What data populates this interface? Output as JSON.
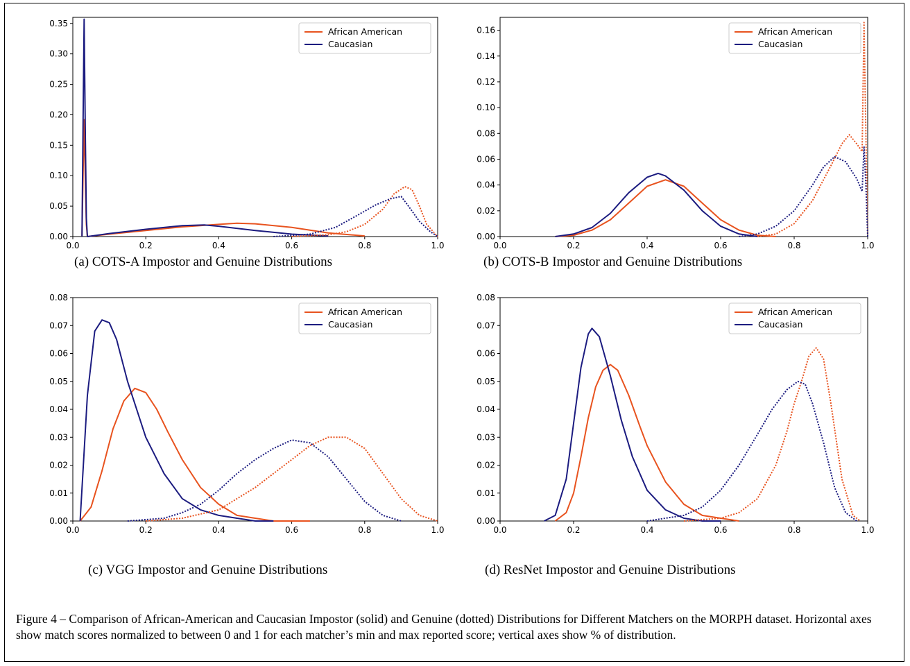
{
  "colors": {
    "african_american": "#e8531f",
    "caucasian": "#1c1c80"
  },
  "legend": [
    "African American",
    "Caucasian"
  ],
  "captions": [
    "(a) COTS-A Impostor and Genuine Distributions",
    "(b) COTS-B Impostor and Genuine Distributions",
    "(c) VGG Impostor and Genuine Distributions",
    "(d) ResNet Impostor and Genuine Distributions"
  ],
  "figure_caption": "Figure 4 – Comparison of African-American and Caucasian Impostor (solid) and Genuine (dotted) Distributions for Different Matchers on the MORPH dataset.  Horizontal axes show match scores normalized to between 0 and 1 for each matcher’s min and max reported score; vertical axes show % of distribution.",
  "chart_data": [
    {
      "type": "line",
      "title": "",
      "xlim": [
        0,
        1
      ],
      "ylim": [
        0,
        0.36
      ],
      "xticks": [
        "0.0",
        "0.2",
        "0.4",
        "0.6",
        "0.8",
        "1.0"
      ],
      "yticks": [
        "0.00",
        "0.05",
        "0.10",
        "0.15",
        "0.20",
        "0.25",
        "0.30",
        "0.35"
      ],
      "legend_position": "top-right",
      "series": [
        {
          "name": "African American",
          "style": "solid",
          "x": [
            0.025,
            0.028,
            0.031,
            0.034,
            0.037,
            0.04,
            0.1,
            0.2,
            0.3,
            0.4,
            0.45,
            0.5,
            0.6,
            0.7,
            0.8
          ],
          "y": [
            0,
            0.1,
            0.192,
            0.1,
            0.02,
            0,
            0.004,
            0.01,
            0.016,
            0.02,
            0.022,
            0.021,
            0.015,
            0.006,
            0.001
          ]
        },
        {
          "name": "Caucasian",
          "style": "solid",
          "x": [
            0.025,
            0.028,
            0.031,
            0.034,
            0.037,
            0.04,
            0.1,
            0.2,
            0.3,
            0.36,
            0.4,
            0.5,
            0.6,
            0.7
          ],
          "y": [
            0,
            0.18,
            0.357,
            0.18,
            0.03,
            0,
            0.005,
            0.012,
            0.018,
            0.019,
            0.017,
            0.01,
            0.004,
            0.001
          ]
        },
        {
          "name": "African American",
          "style": "dotted",
          "x": [
            0.6,
            0.7,
            0.75,
            0.8,
            0.85,
            0.88,
            0.91,
            0.93,
            0.95,
            0.97,
            1.0
          ],
          "y": [
            0,
            0.003,
            0.008,
            0.02,
            0.045,
            0.07,
            0.082,
            0.077,
            0.05,
            0.02,
            0
          ]
        },
        {
          "name": "Caucasian",
          "style": "dotted",
          "x": [
            0.55,
            0.65,
            0.72,
            0.78,
            0.83,
            0.87,
            0.9,
            0.92,
            0.95,
            0.98,
            1.0
          ],
          "y": [
            0,
            0.004,
            0.015,
            0.035,
            0.052,
            0.062,
            0.066,
            0.05,
            0.025,
            0.008,
            0
          ]
        }
      ]
    },
    {
      "type": "line",
      "title": "",
      "xlim": [
        0,
        1
      ],
      "ylim": [
        0,
        0.17
      ],
      "xticks": [
        "0.0",
        "0.2",
        "0.4",
        "0.6",
        "0.8",
        "1.0"
      ],
      "yticks": [
        "0.00",
        "0.02",
        "0.04",
        "0.06",
        "0.08",
        "0.10",
        "0.12",
        "0.14",
        "0.16"
      ],
      "legend_position": "top-right",
      "series": [
        {
          "name": "African American",
          "style": "solid",
          "x": [
            0.15,
            0.2,
            0.25,
            0.3,
            0.35,
            0.4,
            0.45,
            0.5,
            0.55,
            0.6,
            0.65,
            0.7,
            0.75
          ],
          "y": [
            0,
            0.001,
            0.005,
            0.013,
            0.026,
            0.039,
            0.044,
            0.039,
            0.026,
            0.013,
            0.005,
            0.001,
            0
          ]
        },
        {
          "name": "Caucasian",
          "style": "solid",
          "x": [
            0.15,
            0.2,
            0.25,
            0.3,
            0.35,
            0.4,
            0.43,
            0.45,
            0.5,
            0.55,
            0.6,
            0.65,
            0.7
          ],
          "y": [
            0,
            0.002,
            0.007,
            0.018,
            0.034,
            0.046,
            0.049,
            0.047,
            0.036,
            0.02,
            0.008,
            0.002,
            0
          ]
        },
        {
          "name": "African American",
          "style": "dotted",
          "x": [
            0.7,
            0.75,
            0.8,
            0.85,
            0.9,
            0.93,
            0.95,
            0.97,
            0.985,
            0.99,
            0.995,
            1.0
          ],
          "y": [
            0,
            0.002,
            0.01,
            0.028,
            0.055,
            0.072,
            0.079,
            0.072,
            0.066,
            0.166,
            0.08,
            0
          ]
        },
        {
          "name": "Caucasian",
          "style": "dotted",
          "x": [
            0.65,
            0.7,
            0.75,
            0.8,
            0.85,
            0.88,
            0.91,
            0.94,
            0.97,
            0.985,
            0.99,
            0.995,
            1.0
          ],
          "y": [
            0,
            0.002,
            0.008,
            0.02,
            0.04,
            0.054,
            0.062,
            0.058,
            0.045,
            0.035,
            0.07,
            0.04,
            0
          ]
        }
      ]
    },
    {
      "type": "line",
      "title": "",
      "xlim": [
        0,
        1
      ],
      "ylim": [
        0,
        0.08
      ],
      "xticks": [
        "0.0",
        "0.2",
        "0.4",
        "0.6",
        "0.8",
        "1.0"
      ],
      "yticks": [
        "0.00",
        "0.01",
        "0.02",
        "0.03",
        "0.04",
        "0.05",
        "0.06",
        "0.07",
        "0.08"
      ],
      "legend_position": "top-right",
      "series": [
        {
          "name": "African American",
          "style": "solid",
          "x": [
            0.02,
            0.05,
            0.08,
            0.11,
            0.14,
            0.17,
            0.2,
            0.23,
            0.26,
            0.3,
            0.35,
            0.4,
            0.45,
            0.5,
            0.55,
            0.6,
            0.65
          ],
          "y": [
            0,
            0.005,
            0.018,
            0.033,
            0.043,
            0.0475,
            0.046,
            0.04,
            0.032,
            0.022,
            0.012,
            0.006,
            0.002,
            0.001,
            0,
            0,
            0
          ]
        },
        {
          "name": "Caucasian",
          "style": "solid",
          "x": [
            0.02,
            0.04,
            0.06,
            0.08,
            0.1,
            0.12,
            0.15,
            0.2,
            0.25,
            0.3,
            0.35,
            0.4,
            0.45,
            0.5,
            0.55
          ],
          "y": [
            0,
            0.045,
            0.068,
            0.072,
            0.071,
            0.065,
            0.05,
            0.03,
            0.017,
            0.008,
            0.004,
            0.002,
            0.001,
            0,
            0
          ]
        },
        {
          "name": "African American",
          "style": "dotted",
          "x": [
            0.2,
            0.3,
            0.4,
            0.45,
            0.5,
            0.55,
            0.6,
            0.65,
            0.7,
            0.75,
            0.8,
            0.85,
            0.9,
            0.95,
            1.0
          ],
          "y": [
            0,
            0.001,
            0.004,
            0.008,
            0.012,
            0.017,
            0.022,
            0.027,
            0.03,
            0.03,
            0.026,
            0.017,
            0.008,
            0.002,
            0
          ]
        },
        {
          "name": "Caucasian",
          "style": "dotted",
          "x": [
            0.15,
            0.25,
            0.3,
            0.35,
            0.4,
            0.45,
            0.5,
            0.55,
            0.6,
            0.65,
            0.7,
            0.75,
            0.8,
            0.85,
            0.9
          ],
          "y": [
            0,
            0.001,
            0.003,
            0.006,
            0.011,
            0.017,
            0.022,
            0.026,
            0.029,
            0.028,
            0.023,
            0.015,
            0.007,
            0.002,
            0
          ]
        }
      ]
    },
    {
      "type": "line",
      "title": "",
      "xlim": [
        0,
        1
      ],
      "ylim": [
        0,
        0.08
      ],
      "xticks": [
        "0.0",
        "0.2",
        "0.4",
        "0.6",
        "0.8",
        "1.0"
      ],
      "yticks": [
        "0.00",
        "0.01",
        "0.02",
        "0.03",
        "0.04",
        "0.05",
        "0.06",
        "0.07",
        "0.08"
      ],
      "legend_position": "top-right",
      "series": [
        {
          "name": "African American",
          "style": "solid",
          "x": [
            0.15,
            0.18,
            0.2,
            0.22,
            0.24,
            0.26,
            0.28,
            0.3,
            0.32,
            0.35,
            0.38,
            0.4,
            0.45,
            0.5,
            0.55,
            0.6,
            0.65
          ],
          "y": [
            0,
            0.003,
            0.01,
            0.023,
            0.037,
            0.048,
            0.054,
            0.056,
            0.054,
            0.045,
            0.034,
            0.027,
            0.014,
            0.006,
            0.002,
            0.001,
            0
          ]
        },
        {
          "name": "Caucasian",
          "style": "solid",
          "x": [
            0.12,
            0.15,
            0.18,
            0.2,
            0.22,
            0.24,
            0.25,
            0.27,
            0.3,
            0.33,
            0.36,
            0.4,
            0.45,
            0.5,
            0.55,
            0.6
          ],
          "y": [
            0,
            0.002,
            0.015,
            0.035,
            0.055,
            0.067,
            0.069,
            0.066,
            0.052,
            0.036,
            0.023,
            0.011,
            0.004,
            0.001,
            0,
            0
          ]
        },
        {
          "name": "African American",
          "style": "dotted",
          "x": [
            0.5,
            0.6,
            0.65,
            0.7,
            0.75,
            0.78,
            0.8,
            0.82,
            0.84,
            0.86,
            0.88,
            0.9,
            0.93,
            0.96,
            0.98
          ],
          "y": [
            0,
            0.001,
            0.003,
            0.008,
            0.02,
            0.032,
            0.042,
            0.05,
            0.059,
            0.062,
            0.058,
            0.042,
            0.015,
            0.002,
            0
          ]
        },
        {
          "name": "Caucasian",
          "style": "dotted",
          "x": [
            0.4,
            0.5,
            0.55,
            0.6,
            0.65,
            0.7,
            0.74,
            0.78,
            0.81,
            0.83,
            0.85,
            0.88,
            0.91,
            0.94,
            0.97
          ],
          "y": [
            0,
            0.002,
            0.005,
            0.011,
            0.02,
            0.031,
            0.04,
            0.047,
            0.05,
            0.049,
            0.042,
            0.028,
            0.012,
            0.003,
            0
          ]
        }
      ]
    }
  ]
}
